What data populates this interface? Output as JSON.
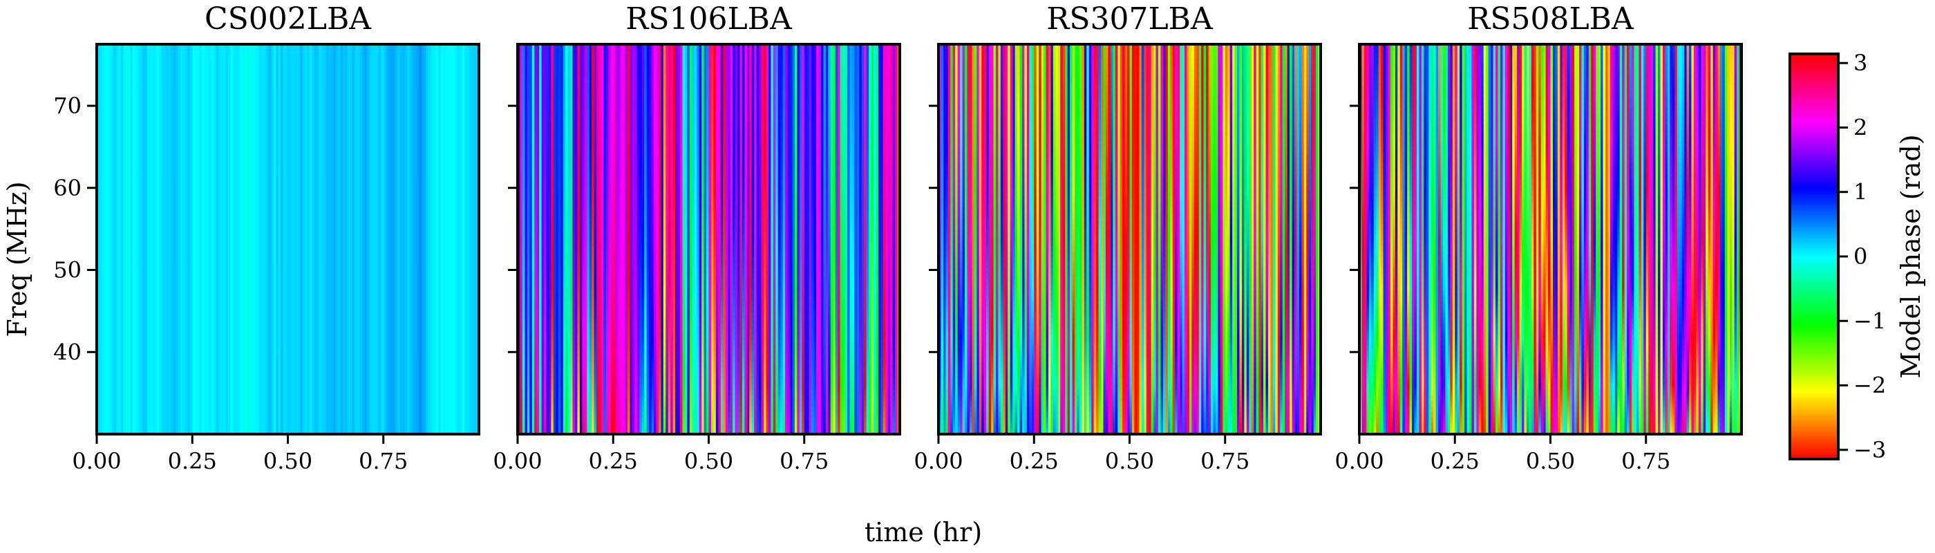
{
  "chart_data": {
    "type": "heatmap",
    "xlabel": "time (hr)",
    "ylabel": "Freq (MHz)",
    "xlim": [
      0,
      1.0
    ],
    "ylim": [
      30,
      77.5
    ],
    "x_ticks": [
      0.0,
      0.25,
      0.5,
      0.75
    ],
    "x_tick_labels": [
      "0.00",
      "0.25",
      "0.50",
      "0.75"
    ],
    "y_ticks": [
      40,
      50,
      60,
      70
    ],
    "y_tick_labels": [
      "40",
      "50",
      "60",
      "70"
    ],
    "colorbar": {
      "label": "Model phase (rad)",
      "range": [
        -3.14159,
        3.14159
      ],
      "ticks": [
        3,
        2,
        1,
        0,
        -1,
        -2,
        -3
      ],
      "tick_labels": [
        "3",
        "2",
        "1",
        "0",
        "−1",
        "−2",
        "−3"
      ],
      "colormap": "hsv"
    },
    "panels": [
      {
        "title": "CS002LBA",
        "phase_center": 0.2,
        "phase_spread": 0.35,
        "dispersion": 0.0,
        "seed": 11
      },
      {
        "title": "RS106LBA",
        "phase_center": 1.5,
        "phase_spread": 2.6,
        "dispersion": 1.4,
        "seed": 23
      },
      {
        "title": "RS307LBA",
        "phase_center": -2.6,
        "phase_spread": 4.5,
        "dispersion": 2.4,
        "seed": 37
      },
      {
        "title": "RS508LBA",
        "phase_center": -1.5,
        "phase_spread": 6.0,
        "dispersion": 3.6,
        "seed": 53
      }
    ]
  }
}
